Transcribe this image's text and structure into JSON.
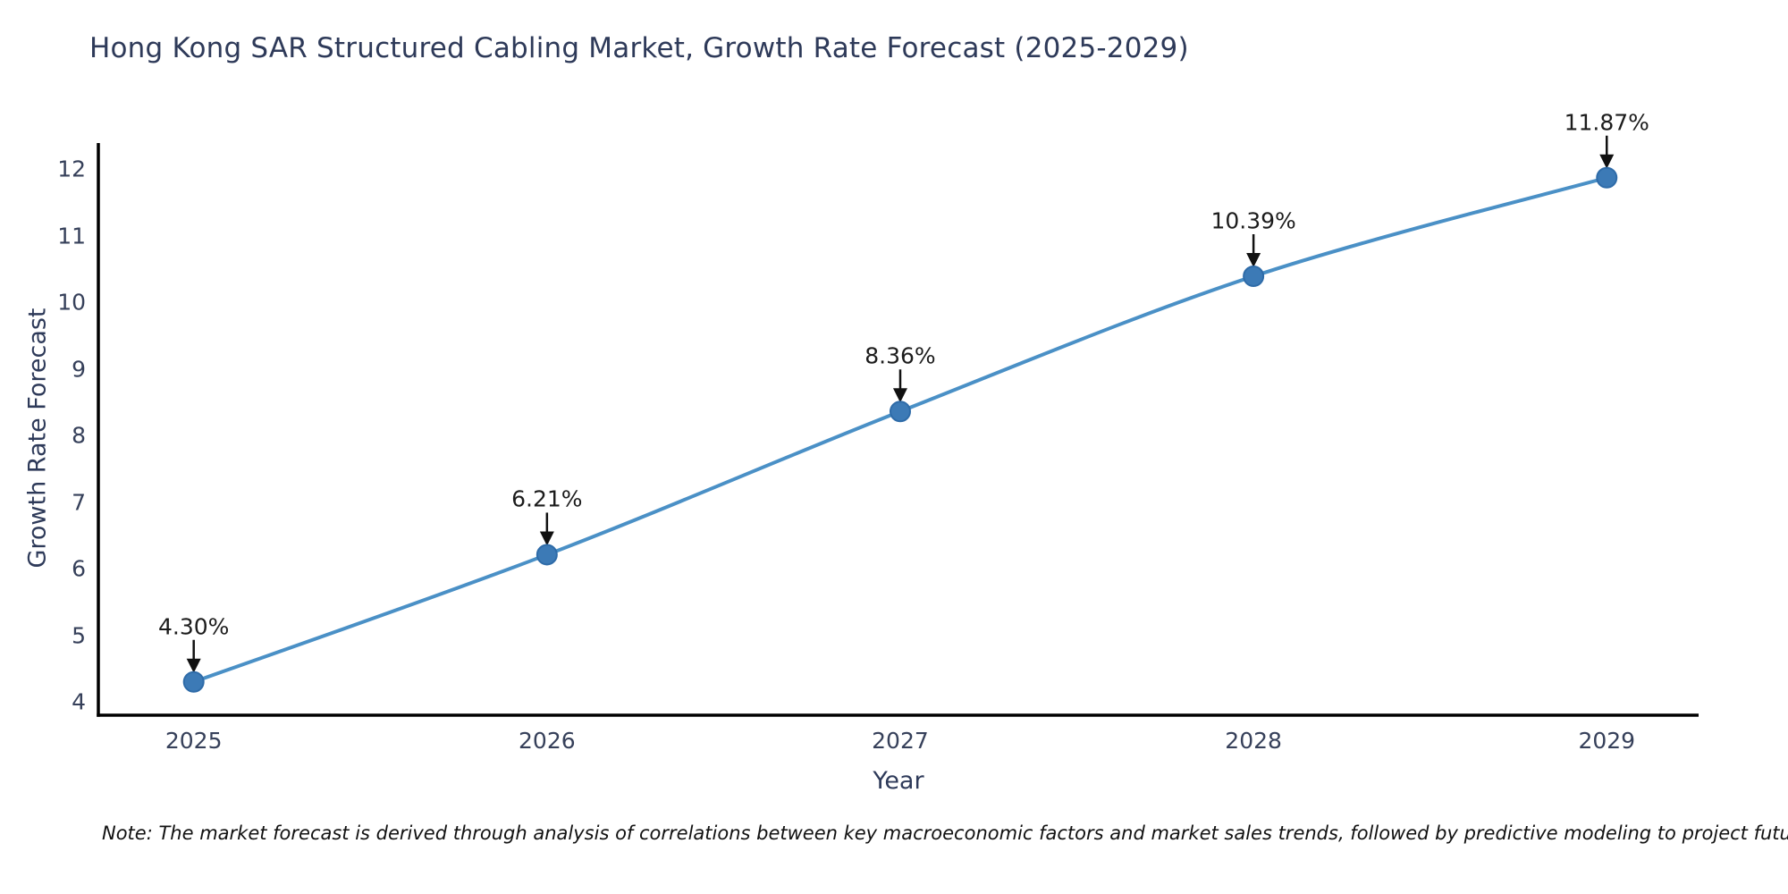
{
  "chart_data": {
    "type": "line",
    "title": "Hong Kong SAR Structured Cabling Market, Growth Rate Forecast (2025-2029)",
    "xlabel": "Year",
    "ylabel": "Growth Rate Forecast",
    "x": [
      2025,
      2026,
      2027,
      2028,
      2029
    ],
    "y": [
      4.3,
      6.21,
      8.36,
      10.39,
      11.87
    ],
    "point_labels": [
      "4.30%",
      "6.21%",
      "8.36%",
      "10.39%",
      "11.87%"
    ],
    "x_tick_labels": [
      "2025",
      "2026",
      "2027",
      "2028",
      "2029"
    ],
    "y_ticks": [
      4,
      5,
      6,
      7,
      8,
      9,
      10,
      11,
      12
    ],
    "y_tick_labels": [
      "4",
      "5",
      "6",
      "7",
      "8",
      "9",
      "10",
      "11",
      "12"
    ],
    "xlim": [
      2024.73,
      2029.26
    ],
    "ylim": [
      3.8,
      12.39
    ],
    "grid": false,
    "legend": "none",
    "annotation_style": "down-arrow",
    "colors": {
      "line": "#4a90c6",
      "marker_fill": "#3c7ab6",
      "marker_edge": "#2e6ba8",
      "axis_spine": "#000000",
      "tick_label": "#36405a",
      "title": "#2e3a59",
      "annotation_text": "#1c1c1c",
      "arrow": "#111111"
    }
  },
  "note": {
    "text": "Note: The market forecast is derived through analysis of correlations between key macroeconomic factors and market sales trends, followed by predictive modeling to project future sales"
  }
}
